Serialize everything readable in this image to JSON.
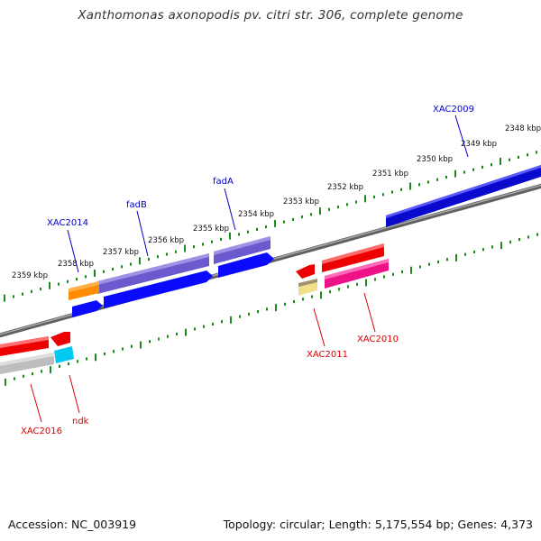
{
  "title": "Xanthomonas axonopodis pv. citri str. 306, complete genome",
  "footer": {
    "accession": "Accession: NC_003919",
    "topology": "Topology: circular; Length: 5,175,554 bp; Genes: 4,373"
  },
  "colors": {
    "backbone": "#808080",
    "tick": "#1a8a1a",
    "top_label": "#0000cc",
    "bottom_label": "#dd0000"
  },
  "scale_labels": [
    "2359 kbp",
    "2358 kbp",
    "2357 kbp",
    "2356 kbp",
    "2355 kbp",
    "2354 kbp",
    "2353 kbp",
    "2352 kbp",
    "2351 kbp",
    "2350 kbp",
    "2349 kbp",
    "2348 kbp"
  ],
  "gene_labels": {
    "top": [
      "XAC2014",
      "fadB",
      "fadA",
      "XAC2009"
    ],
    "bottom": [
      "XAC2016",
      "ndk",
      "XAC2011",
      "XAC2010"
    ]
  }
}
